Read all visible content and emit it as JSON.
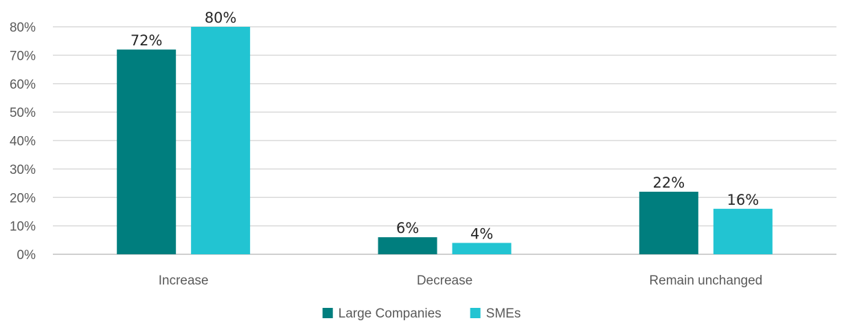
{
  "chart_data": {
    "type": "bar",
    "categories": [
      "Increase",
      "Decrease",
      "Remain unchanged"
    ],
    "series": [
      {
        "name": "Large Companies",
        "values": [
          72,
          6,
          22
        ],
        "labels": [
          "72%",
          "6%",
          "22%"
        ],
        "color": "#007e7e"
      },
      {
        "name": "SMEs",
        "values": [
          80,
          4,
          16
        ],
        "labels": [
          "80%",
          "4%",
          "16%"
        ],
        "color": "#22c4d2"
      }
    ],
    "y_ticks": [
      "0%",
      "10%",
      "20%",
      "30%",
      "40%",
      "50%",
      "60%",
      "70%",
      "80%"
    ],
    "ylim": [
      0,
      80
    ],
    "grid": true,
    "legend": "bottom-center"
  }
}
